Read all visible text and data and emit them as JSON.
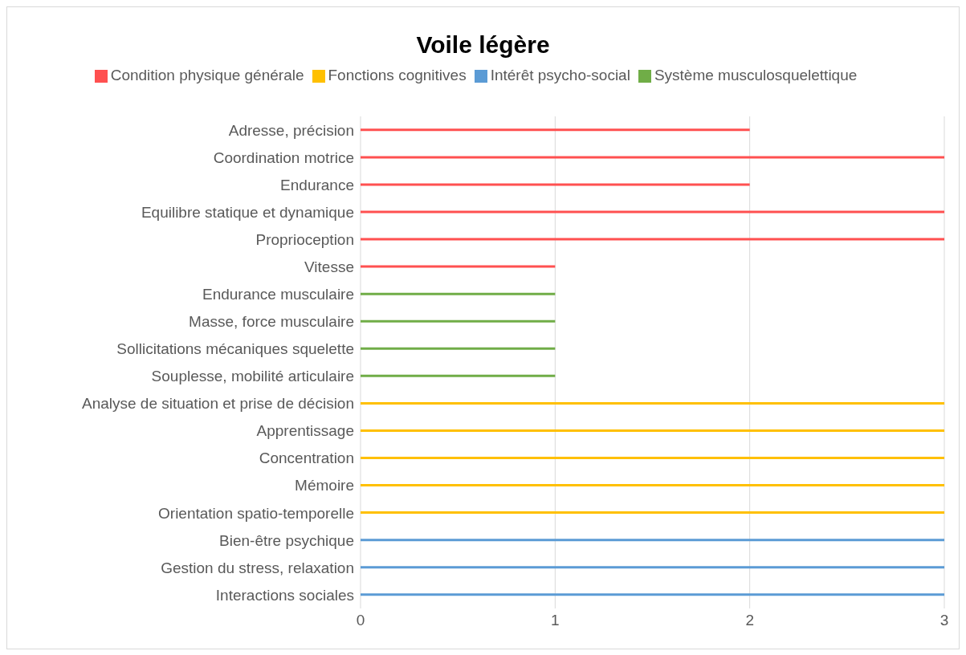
{
  "chart_data": {
    "type": "bar",
    "orientation": "horizontal",
    "stacked": true,
    "title": "Voile légère",
    "categories": [
      "Adresse, précision",
      "Coordination motrice",
      "Endurance",
      "Equilibre statique et dynamique",
      "Proprioception",
      "Vitesse",
      "Endurance musculaire",
      "Masse,  force musculaire",
      "Sollicitations mécaniques squelette",
      "Souplesse, mobilité articulaire",
      "Analyse de situation et prise de décision",
      "Apprentissage",
      "Concentration",
      "Mémoire",
      "Orientation spatio-temporelle",
      "Bien-être psychique",
      "Gestion du stress, relaxation",
      "Interactions sociales"
    ],
    "series": [
      {
        "name": "Condition physique générale",
        "color": "#ff5050",
        "values": [
          2,
          3,
          2,
          3,
          3,
          1,
          null,
          null,
          null,
          null,
          null,
          null,
          null,
          null,
          null,
          null,
          null,
          null
        ]
      },
      {
        "name": "Système musculosquelettique",
        "color": "#70ad47",
        "values": [
          null,
          null,
          null,
          null,
          null,
          null,
          1,
          1,
          1,
          1,
          null,
          null,
          null,
          null,
          null,
          null,
          null,
          null
        ]
      },
      {
        "name": "Fonctions cognitives",
        "color": "#ffc000",
        "values": [
          null,
          null,
          null,
          null,
          null,
          null,
          null,
          null,
          null,
          null,
          3,
          3,
          3,
          3,
          3,
          null,
          null,
          null
        ]
      },
      {
        "name": "Intérêt psycho-social",
        "color": "#5b9bd5",
        "values": [
          null,
          null,
          null,
          null,
          null,
          null,
          null,
          null,
          null,
          null,
          null,
          null,
          null,
          null,
          null,
          3,
          3,
          3
        ]
      }
    ],
    "xlim": [
      0,
      3
    ],
    "xticks": [
      0,
      1,
      2,
      3
    ],
    "grid": "x",
    "legend": "top"
  }
}
